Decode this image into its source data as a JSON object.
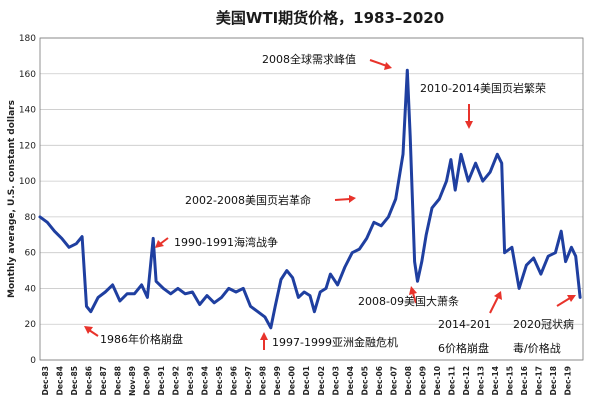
{
  "chart_data": {
    "type": "line",
    "title": "美国WTI期货价格，1983–2020",
    "ylabel": "Monthly average, U.S. constant dollars",
    "xlabel": "",
    "ylim": [
      0,
      180
    ],
    "yticks": [
      0,
      20,
      40,
      60,
      80,
      100,
      120,
      140,
      160,
      180
    ],
    "grid": true,
    "x_tick_labels": [
      "Dec-83",
      "Dec-84",
      "Dec-85",
      "Dec-86",
      "Dec-87",
      "Dec-88",
      "Nov-89",
      "Dec-90",
      "Dec-91",
      "Dec-92",
      "Dec-93",
      "Dec-94",
      "Dec-95",
      "Dec-96",
      "Dec-97",
      "Dec-98",
      "Dec-99",
      "Dec-00",
      "Dec-01",
      "Dec-02",
      "Dec-03",
      "Dec-04",
      "Dec-05",
      "Dec-06",
      "Dec-07",
      "Dec-08",
      "Dec-09",
      "Dec-10",
      "Dec-11",
      "Dec-12",
      "Dec-13",
      "Dec-14",
      "Dec-15",
      "Dec-16",
      "Dec-17",
      "Dec-18",
      "Dec-19"
    ],
    "series": [
      {
        "color": "#1f3fa0",
        "x": [
          1983.0,
          1983.5,
          1984.0,
          1984.5,
          1985.0,
          1985.5,
          1985.9,
          1986.2,
          1986.5,
          1987.0,
          1987.5,
          1988.0,
          1988.5,
          1989.0,
          1989.5,
          1990.0,
          1990.4,
          1990.8,
          1991.0,
          1991.5,
          1992.0,
          1992.5,
          1993.0,
          1993.5,
          1994.0,
          1994.5,
          1995.0,
          1995.5,
          1996.0,
          1996.5,
          1997.0,
          1997.5,
          1998.0,
          1998.5,
          1998.9,
          1999.2,
          1999.6,
          2000.0,
          2000.4,
          2000.8,
          2001.2,
          2001.6,
          2001.9,
          2002.3,
          2002.7,
          2003.0,
          2003.5,
          2004.0,
          2004.5,
          2005.0,
          2005.5,
          2006.0,
          2006.5,
          2007.0,
          2007.5,
          2008.0,
          2008.3,
          2008.5,
          2008.8,
          2009.0,
          2009.3,
          2009.6,
          2010.0,
          2010.5,
          2011.0,
          2011.3,
          2011.6,
          2012.0,
          2012.5,
          2013.0,
          2013.5,
          2014.0,
          2014.5,
          2014.8,
          2015.0,
          2015.5,
          2016.0,
          2016.5,
          2017.0,
          2017.5,
          2018.0,
          2018.5,
          2018.9,
          2019.2,
          2019.6,
          2019.9,
          2020.2
        ],
        "values": [
          80,
          77,
          72,
          68,
          63,
          65,
          69,
          30,
          27,
          35,
          38,
          42,
          33,
          37,
          37,
          42,
          35,
          68,
          44,
          40,
          37,
          40,
          37,
          38,
          31,
          36,
          32,
          35,
          40,
          38,
          40,
          30,
          27,
          24,
          18,
          30,
          45,
          50,
          46,
          35,
          38,
          36,
          27,
          38,
          40,
          48,
          42,
          52,
          60,
          62,
          68,
          77,
          75,
          80,
          90,
          115,
          162,
          125,
          55,
          44,
          55,
          70,
          85,
          90,
          100,
          112,
          95,
          115,
          100,
          110,
          100,
          105,
          115,
          110,
          60,
          63,
          40,
          53,
          57,
          48,
          58,
          60,
          72,
          55,
          63,
          58,
          35
        ]
      }
    ],
    "annotations": [
      {
        "text": "2008全球需求峰值"
      },
      {
        "text": "2010-2014美国页岩繁荣"
      },
      {
        "text": "2002-2008美国页岩革命"
      },
      {
        "text": "1990-1991海湾战争"
      },
      {
        "text": "2008-09美国大萧条"
      },
      {
        "text": "1986年价格崩盘"
      },
      {
        "text": "1997-1999亚洲金融危机"
      },
      {
        "text": "2014-201"
      },
      {
        "text": "6价格崩盘"
      },
      {
        "text": "2020冠状病"
      },
      {
        "text": "毒/价格战"
      }
    ]
  }
}
